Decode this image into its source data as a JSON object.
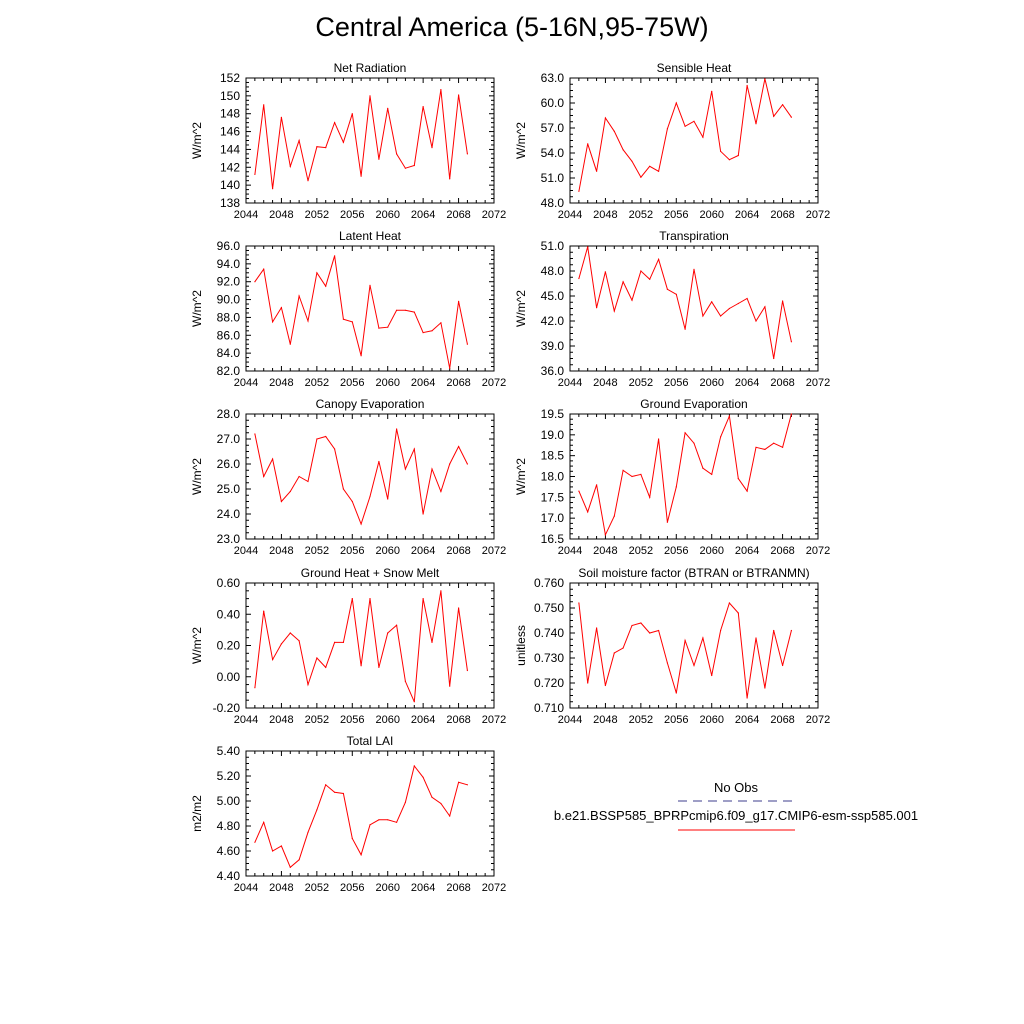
{
  "title": "Central America (5-16N,95-75W)",
  "colors": {
    "model": "#ff0000",
    "obs": "#3c3c8c"
  },
  "legend": {
    "obs_label": "No Obs",
    "model_label": "b.e21.BSSP585_BPRPcmip6.f09_g17.CMIP6-esm-ssp585.001"
  },
  "chart_data": [
    {
      "type": "line",
      "title": "Net Radiation",
      "ylabel": "W/m^2",
      "xlim": [
        2044,
        2072
      ],
      "ylim": [
        138,
        152
      ],
      "xticks": [
        "2044",
        "2048",
        "2052",
        "2056",
        "2060",
        "2064",
        "2068",
        "2072"
      ],
      "yticks": [
        "138",
        "140",
        "142",
        "144",
        "146",
        "148",
        "150",
        "152"
      ],
      "x": [
        2045,
        2046,
        2047,
        2048,
        2049,
        2050,
        2051,
        2052,
        2053,
        2054,
        2055,
        2056,
        2057,
        2058,
        2059,
        2060,
        2061,
        2062,
        2063,
        2064,
        2065,
        2066,
        2067,
        2068,
        2069
      ],
      "y": [
        141.2,
        149.0,
        139.6,
        147.6,
        142.1,
        145.0,
        140.5,
        144.3,
        144.2,
        147.0,
        144.8,
        148.0,
        141.0,
        150.0,
        142.9,
        148.6,
        143.5,
        141.9,
        142.2,
        148.8,
        144.2,
        150.7,
        140.7,
        150.1,
        143.5
      ]
    },
    {
      "type": "line",
      "title": "Sensible Heat",
      "ylabel": "W/m^2",
      "xlim": [
        2044,
        2072
      ],
      "ylim": [
        48.0,
        63.0
      ],
      "xticks": [
        "2044",
        "2048",
        "2052",
        "2056",
        "2060",
        "2064",
        "2068",
        "2072"
      ],
      "yticks": [
        "48.0",
        "51.0",
        "54.0",
        "57.0",
        "60.0",
        "63.0"
      ],
      "x": [
        2045,
        2046,
        2047,
        2048,
        2049,
        2050,
        2051,
        2052,
        2053,
        2054,
        2055,
        2056,
        2057,
        2058,
        2059,
        2060,
        2061,
        2062,
        2063,
        2064,
        2065,
        2066,
        2067,
        2068,
        2069
      ],
      "y": [
        49.4,
        55.1,
        51.8,
        58.2,
        56.6,
        54.4,
        53.0,
        51.1,
        52.4,
        51.8,
        56.9,
        60.0,
        57.2,
        57.8,
        55.9,
        61.4,
        54.2,
        53.2,
        53.7,
        62.1,
        57.5,
        62.9,
        58.4,
        59.8,
        58.3
      ]
    },
    {
      "type": "line",
      "title": "Latent Heat",
      "ylabel": "W/m^2",
      "xlim": [
        2044,
        2072
      ],
      "ylim": [
        82.0,
        96.0
      ],
      "xticks": [
        "2044",
        "2048",
        "2052",
        "2056",
        "2060",
        "2064",
        "2068",
        "2072"
      ],
      "yticks": [
        "82.0",
        "84.0",
        "86.0",
        "88.0",
        "90.0",
        "92.0",
        "94.0",
        "96.0"
      ],
      "x": [
        2045,
        2046,
        2047,
        2048,
        2049,
        2050,
        2051,
        2052,
        2053,
        2054,
        2055,
        2056,
        2057,
        2058,
        2059,
        2060,
        2061,
        2062,
        2063,
        2064,
        2065,
        2066,
        2067,
        2068,
        2069
      ],
      "y": [
        92.0,
        93.4,
        87.5,
        89.1,
        85.0,
        90.4,
        87.6,
        93.0,
        91.5,
        94.9,
        87.8,
        87.5,
        83.7,
        91.6,
        86.8,
        86.9,
        88.8,
        88.8,
        88.6,
        86.3,
        86.5,
        87.4,
        82.3,
        89.8,
        85.0
      ]
    },
    {
      "type": "line",
      "title": "Transpiration",
      "ylabel": "W/m^2",
      "xlim": [
        2044,
        2072
      ],
      "ylim": [
        36.0,
        51.0
      ],
      "xticks": [
        "2044",
        "2048",
        "2052",
        "2056",
        "2060",
        "2064",
        "2068",
        "2072"
      ],
      "yticks": [
        "36.0",
        "39.0",
        "42.0",
        "45.0",
        "48.0",
        "51.0"
      ],
      "x": [
        2045,
        2046,
        2047,
        2048,
        2049,
        2050,
        2051,
        2052,
        2053,
        2054,
        2055,
        2056,
        2057,
        2058,
        2059,
        2060,
        2061,
        2062,
        2063,
        2064,
        2065,
        2066,
        2067,
        2068,
        2069
      ],
      "y": [
        47.1,
        50.9,
        43.6,
        47.9,
        43.2,
        46.7,
        44.5,
        48.0,
        47.0,
        49.4,
        45.8,
        45.2,
        41.0,
        48.2,
        42.6,
        44.3,
        42.6,
        43.5,
        44.1,
        44.7,
        42.0,
        43.7,
        37.5,
        44.4,
        39.5
      ]
    },
    {
      "type": "line",
      "title": "Canopy Evaporation",
      "ylabel": "W/m^2",
      "xlim": [
        2044,
        2072
      ],
      "ylim": [
        23.0,
        28.0
      ],
      "xticks": [
        "2044",
        "2048",
        "2052",
        "2056",
        "2060",
        "2064",
        "2068",
        "2072"
      ],
      "yticks": [
        "23.0",
        "24.0",
        "25.0",
        "26.0",
        "27.0",
        "28.0"
      ],
      "x": [
        2045,
        2046,
        2047,
        2048,
        2049,
        2050,
        2051,
        2052,
        2053,
        2054,
        2055,
        2056,
        2057,
        2058,
        2059,
        2060,
        2061,
        2062,
        2063,
        2064,
        2065,
        2066,
        2067,
        2068,
        2069
      ],
      "y": [
        27.2,
        25.5,
        26.2,
        24.5,
        24.9,
        25.5,
        25.3,
        27.0,
        27.1,
        26.6,
        25.0,
        24.5,
        23.6,
        24.7,
        26.1,
        24.6,
        27.4,
        25.8,
        26.6,
        24.0,
        25.8,
        24.9,
        26.0,
        26.7,
        26.0
      ]
    },
    {
      "type": "line",
      "title": "Ground Evaporation",
      "ylabel": "W/m^2",
      "xlim": [
        2044,
        2072
      ],
      "ylim": [
        16.5,
        19.5
      ],
      "xticks": [
        "2044",
        "2048",
        "2052",
        "2056",
        "2060",
        "2064",
        "2068",
        "2072"
      ],
      "yticks": [
        "16.5",
        "17.0",
        "17.5",
        "18.0",
        "18.5",
        "19.0",
        "19.5"
      ],
      "x": [
        2045,
        2046,
        2047,
        2048,
        2049,
        2050,
        2051,
        2052,
        2053,
        2054,
        2055,
        2056,
        2057,
        2058,
        2059,
        2060,
        2061,
        2062,
        2063,
        2064,
        2065,
        2066,
        2067,
        2068,
        2069
      ],
      "y": [
        17.65,
        17.15,
        17.8,
        16.6,
        17.05,
        18.15,
        18.0,
        18.05,
        17.5,
        18.9,
        16.9,
        17.75,
        19.05,
        18.8,
        18.2,
        18.05,
        18.95,
        19.45,
        17.95,
        17.65,
        18.7,
        18.65,
        18.8,
        18.7,
        19.5
      ]
    },
    {
      "type": "line",
      "title": "Ground Heat + Snow Melt",
      "ylabel": "W/m^2",
      "xlim": [
        2044,
        2072
      ],
      "ylim": [
        -0.2,
        0.6
      ],
      "xticks": [
        "2044",
        "2048",
        "2052",
        "2056",
        "2060",
        "2064",
        "2068",
        "2072"
      ],
      "yticks": [
        "-0.20",
        "0.00",
        "0.20",
        "0.40",
        "0.60"
      ],
      "x": [
        2045,
        2046,
        2047,
        2048,
        2049,
        2050,
        2051,
        2052,
        2053,
        2054,
        2055,
        2056,
        2057,
        2058,
        2059,
        2060,
        2061,
        2062,
        2063,
        2064,
        2065,
        2066,
        2067,
        2068,
        2069
      ],
      "y": [
        -0.07,
        0.42,
        0.11,
        0.21,
        0.28,
        0.23,
        -0.05,
        0.12,
        0.06,
        0.22,
        0.22,
        0.5,
        0.07,
        0.5,
        0.06,
        0.28,
        0.33,
        -0.03,
        -0.16,
        0.5,
        0.22,
        0.55,
        -0.06,
        0.44,
        0.04
      ]
    },
    {
      "type": "line",
      "title": "Soil moisture factor (BTRAN or BTRANMN)",
      "ylabel": "unitless",
      "xlim": [
        2044,
        2072
      ],
      "ylim": [
        0.71,
        0.76
      ],
      "xticks": [
        "2044",
        "2048",
        "2052",
        "2056",
        "2060",
        "2064",
        "2068",
        "2072"
      ],
      "yticks": [
        "0.710",
        "0.720",
        "0.730",
        "0.740",
        "0.750",
        "0.760"
      ],
      "x": [
        2045,
        2046,
        2047,
        2048,
        2049,
        2050,
        2051,
        2052,
        2053,
        2054,
        2055,
        2056,
        2057,
        2058,
        2059,
        2060,
        2061,
        2062,
        2063,
        2064,
        2065,
        2066,
        2067,
        2068,
        2069
      ],
      "y": [
        0.752,
        0.72,
        0.742,
        0.719,
        0.732,
        0.734,
        0.743,
        0.744,
        0.74,
        0.741,
        0.728,
        0.716,
        0.737,
        0.727,
        0.738,
        0.723,
        0.741,
        0.752,
        0.748,
        0.714,
        0.738,
        0.718,
        0.741,
        0.727,
        0.741
      ]
    },
    {
      "type": "line",
      "title": "Total LAI",
      "ylabel": "m2/m2",
      "xlim": [
        2044,
        2072
      ],
      "ylim": [
        4.4,
        5.4
      ],
      "xticks": [
        "2044",
        "2048",
        "2052",
        "2056",
        "2060",
        "2064",
        "2068",
        "2072"
      ],
      "yticks": [
        "4.40",
        "4.60",
        "4.80",
        "5.00",
        "5.20",
        "5.40"
      ],
      "x": [
        2045,
        2046,
        2047,
        2048,
        2049,
        2050,
        2051,
        2052,
        2053,
        2054,
        2055,
        2056,
        2057,
        2058,
        2059,
        2060,
        2061,
        2062,
        2063,
        2064,
        2065,
        2066,
        2067,
        2068,
        2069
      ],
      "y": [
        4.67,
        4.83,
        4.6,
        4.64,
        4.47,
        4.53,
        4.75,
        4.93,
        5.13,
        5.07,
        5.06,
        4.7,
        4.57,
        4.81,
        4.85,
        4.85,
        4.83,
        4.99,
        5.28,
        5.19,
        5.03,
        4.98,
        4.88,
        5.15,
        5.13
      ]
    }
  ]
}
